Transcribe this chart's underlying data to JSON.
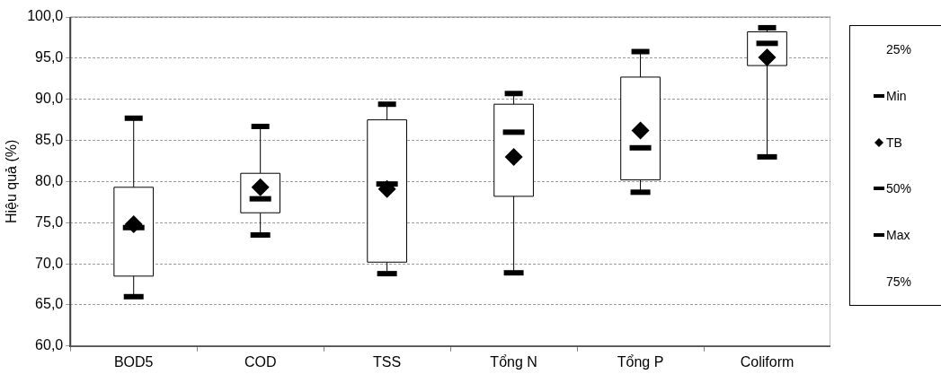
{
  "chart_data": {
    "type": "box",
    "ylabel": "Hiệu quả (%)",
    "categories": [
      "BOD5",
      "COD",
      "TSS",
      "Tổng N",
      "Tổng P",
      "Coliform"
    ],
    "boxes": [
      {
        "low": 66.0,
        "q1": 68.5,
        "median": 74.4,
        "q3": 79.3,
        "high": 87.7,
        "mean": 74.8
      },
      {
        "low": 73.5,
        "q1": 76.2,
        "median": 77.9,
        "q3": 81.0,
        "high": 86.7,
        "mean": 79.3
      },
      {
        "low": 68.8,
        "q1": 70.2,
        "median": 79.7,
        "q3": 87.5,
        "high": 89.4,
        "mean": 79.1
      },
      {
        "low": 68.9,
        "q1": 78.2,
        "median": 86.0,
        "q3": 89.4,
        "high": 90.7,
        "mean": 83.0
      },
      {
        "low": 78.7,
        "q1": 80.2,
        "median": 84.1,
        "q3": 92.7,
        "high": 95.8,
        "mean": 86.2
      },
      {
        "low": 83.0,
        "q1": 94.1,
        "median": 96.8,
        "q3": 98.2,
        "high": 98.7,
        "mean": 95.1
      }
    ],
    "annotations": [
      "25%",
      "Min",
      "TB",
      "50%",
      "Max",
      "75%"
    ],
    "ylim": [
      60,
      100
    ],
    "yticks": [
      {
        "value": 60,
        "label": "60,0"
      },
      {
        "value": 65,
        "label": "65,0"
      },
      {
        "value": 70,
        "label": "70,0"
      },
      {
        "value": 75,
        "label": "75,0"
      },
      {
        "value": 80,
        "label": "80,0"
      },
      {
        "value": 85,
        "label": "85,0"
      },
      {
        "value": 90,
        "label": "90,0"
      },
      {
        "value": 95,
        "label": "95,0"
      },
      {
        "value": 100,
        "label": "100,0"
      }
    ],
    "grid": "y",
    "marker": "diamond"
  }
}
